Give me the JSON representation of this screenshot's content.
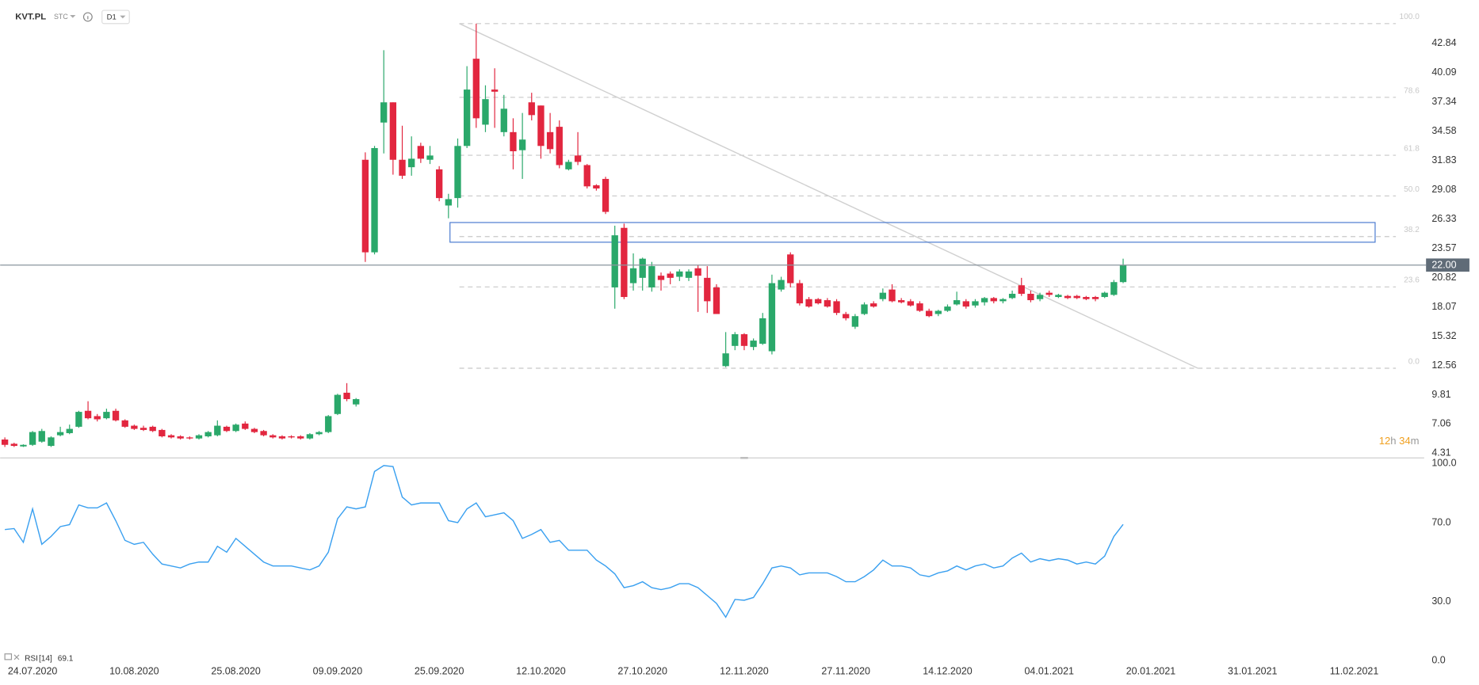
{
  "header": {
    "symbol": "KVT.PL",
    "market": "STC",
    "timeframe": "D1"
  },
  "chart_data": [
    {
      "type": "candlestick",
      "categories": [
        null,
        null,
        null,
        "24.07.2020",
        null,
        null,
        null,
        null,
        null,
        null,
        null,
        null,
        null,
        null,
        "10.08.2020",
        null,
        null,
        null,
        null,
        null,
        null,
        null,
        null,
        null,
        null,
        "25.08.2020",
        null,
        null,
        null,
        null,
        null,
        null,
        null,
        null,
        null,
        null,
        "09.09.2020",
        null,
        null,
        null,
        null,
        null,
        null,
        null,
        null,
        null,
        null,
        "25.09.2020",
        null,
        null,
        null,
        null,
        null,
        null,
        null,
        null,
        null,
        null,
        "12.10.2020",
        null,
        null,
        null,
        null,
        null,
        null,
        null,
        null,
        null,
        null,
        "27.10.2020",
        null,
        null,
        null,
        null,
        null,
        null,
        null,
        null,
        null,
        null,
        "12.11.2020",
        null,
        null,
        null,
        null,
        null,
        null,
        null,
        null,
        null,
        null,
        "27.11.2020",
        null,
        null,
        null,
        null,
        null,
        null,
        null,
        null,
        null,
        null,
        "14.12.2020",
        null,
        null,
        null,
        null,
        null,
        null,
        null,
        null,
        null,
        null,
        "04.01.2021",
        null,
        null,
        null,
        null,
        null,
        null,
        null,
        null,
        null,
        null,
        "20.01.2021",
        null,
        null,
        null,
        null,
        null,
        null,
        null,
        null,
        null,
        null,
        "31.01.2021",
        null,
        null,
        null,
        null,
        null,
        null,
        null,
        null,
        null,
        null,
        "11.02.2021"
      ],
      "open": [
        5.6,
        5.2,
        4.95,
        5.1,
        5.4,
        5.0,
        6.0,
        6.2,
        6.8,
        8.3,
        7.8,
        7.6,
        8.3,
        7.4,
        6.9,
        6.7,
        6.8,
        6.5,
        6.0,
        5.9,
        5.8,
        5.7,
        5.9,
        6.0,
        6.8,
        6.4,
        7.1,
        6.6,
        6.4,
        6.0,
        5.9,
        5.9,
        5.9,
        5.7,
        6.1,
        6.3,
        8.0,
        10.0,
        8.9,
        31.9,
        23.2,
        35.4,
        37.3,
        31.9,
        31.2,
        33.2,
        31.9,
        31.0,
        27.6,
        28.3,
        33.2,
        41.4,
        35.2,
        38.5,
        34.5,
        34.5,
        32.8,
        37.3,
        37.0,
        34.5,
        35.0,
        31.0,
        32.3,
        31.4,
        29.5,
        30.1,
        19.9,
        25.5,
        20.3,
        20.8,
        19.9,
        21.0,
        21.2,
        20.9,
        20.8,
        21.7,
        20.8,
        19.9,
        12.5,
        14.4,
        15.5,
        14.3,
        14.6,
        13.9,
        19.7,
        23.0,
        20.3,
        18.8,
        18.8,
        18.7,
        18.6,
        17.4,
        16.2,
        17.4,
        18.4,
        18.8,
        19.7,
        18.7,
        18.6,
        18.4,
        17.7,
        17.4,
        17.7,
        18.3,
        18.6,
        18.2,
        18.5,
        18.9,
        18.6,
        18.9,
        20.1,
        19.3,
        18.8,
        19.4,
        19.0,
        19.1,
        19.1,
        19.0,
        19.0,
        19.0,
        19.2,
        20.4,
        null,
        null,
        null,
        null,
        null,
        null,
        null,
        null,
        null,
        null,
        null,
        null,
        null,
        null,
        null,
        null,
        null,
        null,
        null,
        null,
        null,
        null,
        null,
        null,
        null
      ],
      "high": [
        5.8,
        5.3,
        5.15,
        6.4,
        6.6,
        5.9,
        6.8,
        7.0,
        8.3,
        9.2,
        8.0,
        8.5,
        8.5,
        7.5,
        7.0,
        6.9,
        6.9,
        6.6,
        6.1,
        6.0,
        5.9,
        6.1,
        6.4,
        7.4,
        6.9,
        7.1,
        7.3,
        6.7,
        6.5,
        6.1,
        6.0,
        6.0,
        6.0,
        6.2,
        6.4,
        7.9,
        9.9,
        10.9,
        9.5,
        32.6,
        33.2,
        42.2,
        37.3,
        35.1,
        34.1,
        33.5,
        33.2,
        31.3,
        28.7,
        33.9,
        40.7,
        44.7,
        38.9,
        40.5,
        38.0,
        35.8,
        36.3,
        38.2,
        37.0,
        36.3,
        35.6,
        31.9,
        34.5,
        31.5,
        29.6,
        30.3,
        25.7,
        25.9,
        23.1,
        22.7,
        22.3,
        21.3,
        21.4,
        21.6,
        21.6,
        22.0,
        21.9,
        20.2,
        15.7,
        15.7,
        15.6,
        15.1,
        17.5,
        21.1,
        20.9,
        23.2,
        20.6,
        19.0,
        18.9,
        18.9,
        18.8,
        17.6,
        17.4,
        18.5,
        18.6,
        19.8,
        20.2,
        18.9,
        18.8,
        18.6,
        17.9,
        17.8,
        18.3,
        19.5,
        18.8,
        18.8,
        19.0,
        19.0,
        18.9,
        19.6,
        20.8,
        19.6,
        19.4,
        19.6,
        19.3,
        19.2,
        19.2,
        19.1,
        19.1,
        19.5,
        20.6,
        22.6,
        null,
        null,
        null,
        null,
        null,
        null,
        null,
        null,
        null,
        null,
        null,
        null,
        null,
        null,
        null,
        null,
        null,
        null,
        null,
        null,
        null,
        null,
        null,
        null,
        null
      ],
      "low": [
        4.9,
        4.9,
        4.9,
        5.0,
        5.3,
        4.9,
        5.9,
        6.1,
        6.7,
        7.5,
        7.3,
        7.5,
        7.3,
        6.7,
        6.5,
        6.4,
        6.3,
        5.8,
        5.7,
        5.6,
        5.6,
        5.6,
        5.8,
        5.9,
        6.3,
        6.3,
        6.5,
        6.2,
        5.9,
        5.7,
        5.6,
        5.7,
        5.6,
        5.6,
        6.0,
        6.2,
        7.9,
        9.2,
        8.7,
        22.3,
        23.0,
        32.5,
        30.5,
        30.1,
        30.4,
        31.6,
        31.5,
        28.0,
        26.4,
        27.4,
        33.0,
        34.9,
        34.5,
        34.9,
        34.1,
        31.0,
        30.1,
        35.6,
        32.0,
        32.5,
        31.1,
        30.9,
        31.4,
        29.2,
        29.0,
        26.8,
        17.9,
        18.8,
        19.6,
        19.6,
        19.5,
        19.6,
        20.2,
        20.5,
        20.5,
        17.6,
        17.5,
        17.4,
        12.4,
        14.0,
        14.0,
        14.0,
        14.5,
        13.6,
        19.5,
        19.9,
        18.2,
        18.0,
        18.3,
        18.0,
        17.3,
        16.8,
        16.0,
        17.3,
        18.0,
        18.6,
        18.5,
        18.4,
        18.1,
        17.6,
        17.1,
        17.2,
        17.6,
        18.2,
        17.9,
        18.0,
        18.2,
        18.4,
        18.4,
        18.8,
        19.1,
        18.5,
        18.6,
        19.0,
        18.9,
        18.8,
        18.8,
        18.7,
        18.6,
        18.9,
        19.1,
        20.3,
        null,
        null,
        null,
        null,
        null,
        null,
        null,
        null,
        null,
        null,
        null,
        null,
        null,
        null,
        null,
        null,
        null,
        null,
        null,
        null,
        null,
        null,
        null,
        null,
        null
      ],
      "close": [
        5.1,
        5.0,
        5.1,
        6.3,
        6.4,
        5.8,
        6.3,
        6.6,
        8.2,
        7.6,
        7.5,
        8.2,
        7.4,
        6.8,
        6.6,
        6.5,
        6.4,
        5.9,
        5.8,
        5.7,
        5.7,
        6.0,
        6.3,
        6.9,
        6.4,
        7.0,
        6.6,
        6.3,
        6.0,
        5.8,
        5.7,
        5.8,
        5.7,
        6.1,
        6.3,
        7.8,
        9.8,
        9.4,
        9.4,
        23.2,
        33.0,
        37.3,
        31.9,
        30.4,
        32.0,
        32.0,
        32.3,
        28.3,
        28.2,
        33.2,
        38.5,
        35.8,
        37.6,
        38.3,
        36.7,
        32.7,
        33.8,
        36.1,
        33.2,
        32.9,
        31.4,
        31.7,
        31.7,
        29.4,
        29.2,
        27.0,
        24.8,
        19.0,
        21.7,
        22.6,
        21.9,
        20.6,
        20.8,
        21.4,
        21.4,
        21.0,
        18.6,
        17.4,
        13.7,
        15.5,
        14.4,
        14.9,
        17.0,
        20.3,
        20.6,
        20.3,
        18.4,
        18.1,
        18.4,
        18.1,
        17.5,
        17.0,
        17.2,
        18.3,
        18.1,
        19.4,
        18.6,
        18.5,
        18.2,
        17.7,
        17.2,
        17.7,
        18.1,
        18.7,
        18.1,
        18.6,
        18.9,
        18.6,
        18.8,
        19.3,
        19.3,
        18.7,
        19.2,
        19.2,
        19.2,
        18.9,
        18.9,
        18.8,
        18.8,
        19.4,
        20.4,
        22.0,
        null,
        null,
        null,
        null,
        null,
        null,
        null,
        null,
        null,
        null,
        null,
        null,
        null,
        null,
        null,
        null,
        null,
        null,
        null,
        null,
        null,
        null,
        null,
        null,
        null
      ],
      "up_color": "#2aa86a",
      "down_color": "#e2263f",
      "ylim": [
        3.87,
        46.92
      ],
      "yticks": [
        4.31,
        7.06,
        9.81,
        12.56,
        15.32,
        18.07,
        20.82,
        23.57,
        26.33,
        29.08,
        31.83,
        34.58,
        37.34,
        40.09,
        42.84
      ],
      "current_price": {
        "value": 22,
        "label": "22.00"
      },
      "fibonacci": {
        "high": 44.7,
        "low": 12.3,
        "color": "#c8c8c8",
        "levels": [
          {
            "value": 100,
            "label": "100.0"
          },
          78.6,
          61.8,
          {
            "value": 50,
            "label": "50.0"
          },
          38.2,
          23.6,
          {
            "value": 0,
            "label": "0.0"
          }
        ]
      },
      "zone": {
        "top": 26.0,
        "bottom": 24.15,
        "color": "#4a7bd0"
      },
      "trendline": {
        "start": 44.7,
        "end": 12.3,
        "color": "#d0d0d0"
      },
      "countdown": {
        "hours": 12,
        "hours_unit": "h",
        "minutes": 34,
        "minutes_unit": "m"
      }
    },
    {
      "type": "line",
      "name": "RSI",
      "period": "[14]",
      "color": "#3aa0f0",
      "values": [
        66.5,
        67,
        60,
        77,
        59,
        63,
        68,
        69,
        79,
        77.5,
        77.5,
        80,
        71,
        61,
        59,
        60,
        54,
        49,
        48,
        47,
        49,
        50,
        50,
        58,
        55,
        62,
        58,
        54,
        50,
        48,
        48,
        48,
        47,
        46,
        48,
        55,
        72,
        78,
        77,
        78,
        96,
        99,
        98.5,
        83,
        79,
        80,
        80,
        80,
        71,
        70,
        77,
        80,
        73,
        74,
        75,
        71,
        62,
        64,
        66.5,
        60,
        61,
        56,
        56,
        56,
        51,
        48,
        44,
        37,
        38,
        40,
        37,
        36,
        37,
        39,
        39,
        37,
        33,
        29,
        22,
        31,
        30.6,
        32,
        39,
        47,
        48,
        47,
        43.5,
        44.5,
        44.5,
        44.5,
        42.6,
        40,
        40,
        42.6,
        46,
        51,
        48,
        48,
        47,
        43.5,
        42.6,
        44.5,
        45.5,
        48,
        46,
        48,
        49,
        47,
        48,
        52,
        54.5,
        50,
        51.7,
        50.7,
        51.7,
        51,
        49,
        50,
        49,
        53,
        63,
        69.1,
        null,
        null,
        null,
        null,
        null,
        null,
        null,
        null,
        null,
        null,
        null,
        null,
        null,
        null,
        null,
        null,
        null,
        null,
        null,
        null,
        null,
        null,
        null,
        null,
        null
      ],
      "ylim": [
        0,
        100
      ],
      "yticks": [
        {
          "value": 0,
          "label": "0.0"
        },
        {
          "value": 30,
          "label": "30.0"
        },
        {
          "value": 70,
          "label": "70.0"
        },
        {
          "value": 100,
          "label": "100.0"
        }
      ]
    }
  ]
}
